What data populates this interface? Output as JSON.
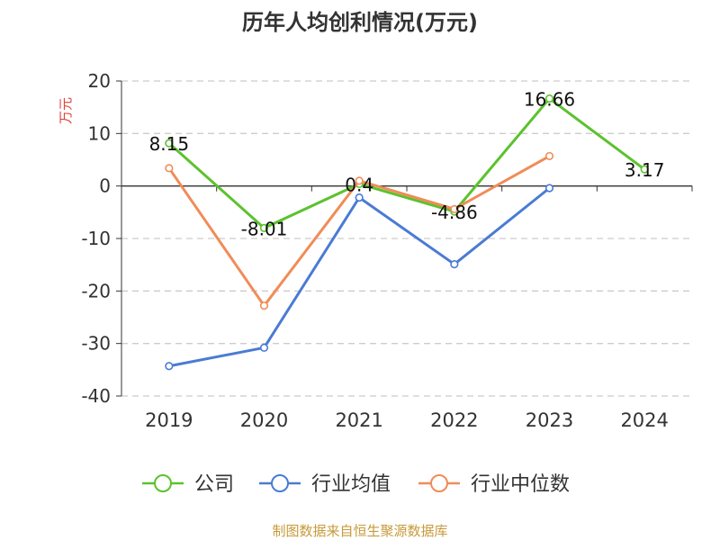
{
  "chart_data": {
    "type": "line",
    "title": "历年人均创利情况(万元)",
    "ylabel": "万元",
    "xlabel": "",
    "categories": [
      "2019",
      "2020",
      "2021",
      "2022",
      "2023",
      "2024"
    ],
    "ylim": [
      -40,
      20
    ],
    "yticks": [
      20,
      10,
      0,
      -10,
      -20,
      -30,
      -40
    ],
    "grid": true,
    "legend_position": "bottom",
    "series": [
      {
        "name": "公司",
        "color": "#5cc22e",
        "values": [
          8.15,
          -8.01,
          0.4,
          -4.86,
          16.66,
          3.17
        ],
        "labels": [
          "8.15",
          "-8.01",
          "0.4",
          "-4.86",
          "16.66",
          "3.17"
        ]
      },
      {
        "name": "行业均值",
        "color": "#4a7bd4",
        "values": [
          -34.3,
          -30.8,
          -2.2,
          -14.9,
          -0.4,
          null
        ]
      },
      {
        "name": "行业中位数",
        "color": "#f08c58",
        "values": [
          3.4,
          -22.8,
          1.0,
          -4.4,
          5.7,
          null
        ]
      }
    ]
  },
  "footer": {
    "source": "制图数据来自恒生聚源数据库"
  }
}
